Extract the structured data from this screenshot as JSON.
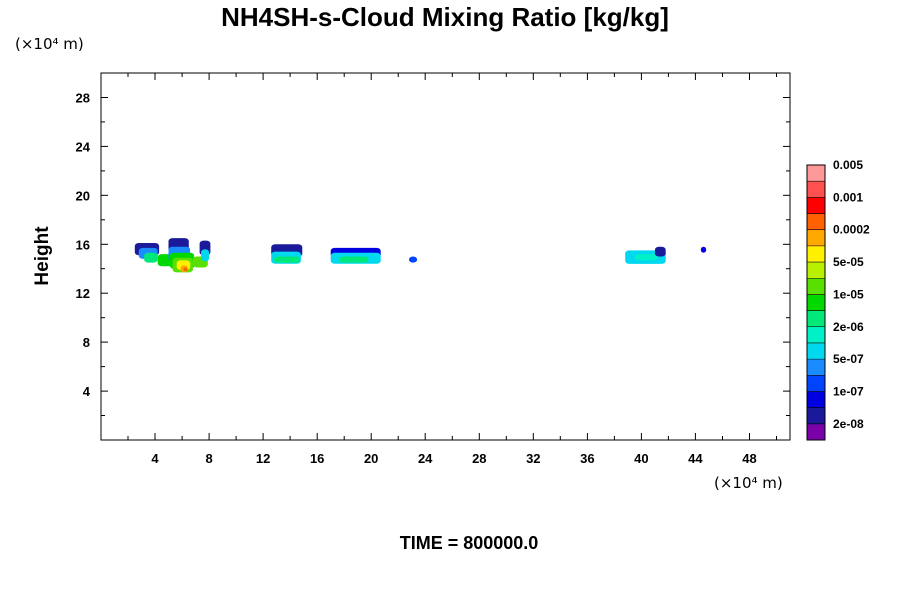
{
  "chart_data": {
    "type": "heatmap",
    "title": "NH4SH-s-Cloud Mixing Ratio [kg/kg]",
    "xunit": "(×10⁴ m)",
    "yunit": "(×10⁴ m)",
    "ylabel": "Height",
    "xlim": [
      0,
      51
    ],
    "ylim": [
      0,
      30
    ],
    "xticks": [
      4,
      8,
      12,
      16,
      20,
      24,
      28,
      32,
      36,
      40,
      44,
      48
    ],
    "yticks": [
      4,
      8,
      12,
      16,
      20,
      24,
      28
    ],
    "time_label": "TIME = 800000.0",
    "colorbar": {
      "colors": [
        "#7a00a8",
        "#1a1a9a",
        "#0000e0",
        "#0044ff",
        "#1a8cff",
        "#00d8f0",
        "#00f0c8",
        "#00e87a",
        "#00d800",
        "#5ae000",
        "#b8f000",
        "#fff000",
        "#ffa800",
        "#ff6000",
        "#ff0000",
        "#ff5050",
        "#ff9999"
      ],
      "labels": [
        "2e-08",
        "1e-07",
        "5e-07",
        "2e-06",
        "1e-05",
        "5e-05",
        "0.0002",
        "0.001",
        "0.005"
      ]
    },
    "blobs": [
      {
        "x": [
          2.5,
          4.3
        ],
        "y": [
          15.1,
          16.1
        ],
        "level": 1
      },
      {
        "x": [
          2.8,
          4.2
        ],
        "y": [
          14.8,
          15.7
        ],
        "level": 4
      },
      {
        "x": [
          3.2,
          4.2
        ],
        "y": [
          14.5,
          15.3
        ],
        "level": 7
      },
      {
        "x": [
          4.2,
          5.5
        ],
        "y": [
          14.2,
          15.2
        ],
        "level": 8
      },
      {
        "x": [
          5.0,
          6.5
        ],
        "y": [
          15.4,
          16.5
        ],
        "level": 1
      },
      {
        "x": [
          5.0,
          6.6
        ],
        "y": [
          14.6,
          15.8
        ],
        "level": 4
      },
      {
        "x": [
          5.1,
          6.9
        ],
        "y": [
          14.0,
          15.3
        ],
        "level": 8
      },
      {
        "x": [
          5.3,
          6.8
        ],
        "y": [
          13.7,
          14.9
        ],
        "level": 9
      },
      {
        "x": [
          5.6,
          6.6
        ],
        "y": [
          13.9,
          14.7
        ],
        "level": 11
      },
      {
        "x": [
          5.9,
          6.4
        ],
        "y": [
          13.7,
          14.3
        ],
        "level": 12
      },
      {
        "x": [
          6.1,
          6.4
        ],
        "y": [
          13.8,
          14.1
        ],
        "level": 13
      },
      {
        "x": [
          6.8,
          7.9
        ],
        "y": [
          14.1,
          15.0
        ],
        "level": 9
      },
      {
        "x": [
          7.3,
          8.1
        ],
        "y": [
          15.1,
          16.3
        ],
        "level": 1
      },
      {
        "x": [
          7.4,
          8.0
        ],
        "y": [
          14.6,
          15.6
        ],
        "level": 5
      },
      {
        "x": [
          12.6,
          14.9
        ],
        "y": [
          15.0,
          16.0
        ],
        "level": 1
      },
      {
        "x": [
          12.6,
          14.8
        ],
        "y": [
          14.4,
          15.4
        ],
        "level": 5
      },
      {
        "x": [
          12.8,
          14.7
        ],
        "y": [
          14.5,
          15.0
        ],
        "level": 7
      },
      {
        "x": [
          17.0,
          20.7
        ],
        "y": [
          14.9,
          15.7
        ],
        "level": 2
      },
      {
        "x": [
          17.0,
          20.7
        ],
        "y": [
          14.4,
          15.3
        ],
        "level": 5
      },
      {
        "x": [
          17.6,
          19.8
        ],
        "y": [
          14.5,
          15.0
        ],
        "level": 7
      },
      {
        "x": [
          22.8,
          23.4
        ],
        "y": [
          14.5,
          15.0
        ],
        "level": 3
      },
      {
        "x": [
          38.8,
          41.8
        ],
        "y": [
          14.4,
          15.5
        ],
        "level": 5
      },
      {
        "x": [
          39.5,
          41.2
        ],
        "y": [
          14.7,
          15.2
        ],
        "level": 6
      },
      {
        "x": [
          41.0,
          41.8
        ],
        "y": [
          15.0,
          15.8
        ],
        "level": 1
      },
      {
        "x": [
          44.4,
          44.8
        ],
        "y": [
          15.3,
          15.8
        ],
        "level": 2
      }
    ]
  }
}
